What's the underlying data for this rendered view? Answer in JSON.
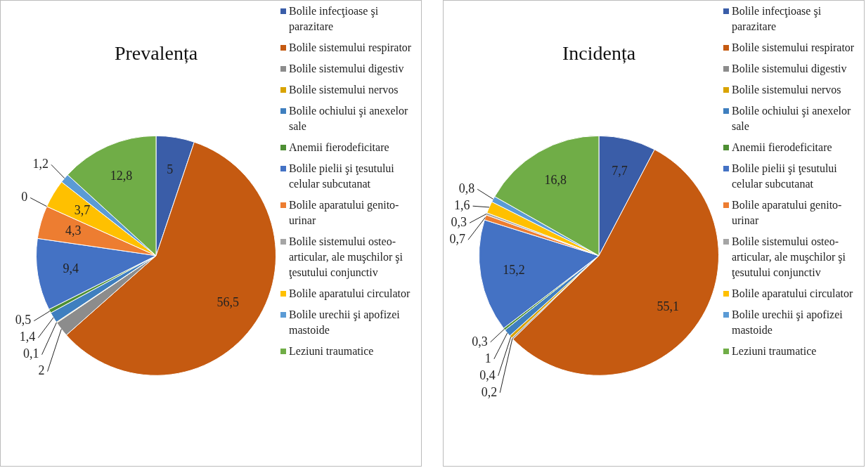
{
  "chart_data": [
    {
      "type": "pie",
      "title": "Prevalența",
      "legend": "right",
      "categories": [
        "Bolile infecţioase şi parazitare",
        "Bolile sistemului respirator",
        "Bolile sistemului digestiv",
        "Bolile sistemului nervos",
        "Bolile ochiului şi anexelor sale",
        "Anemii fierodeficitare",
        "Bolile pielii şi ţesutului celular subcutanat",
        "Bolile aparatului genito-urinar",
        "Bolile sistemului osteo-articular, ale muşchilor şi ţesutului conjunctiv",
        "Bolile aparatului circulator",
        "Bolile urechii şi apofizei mastoide",
        "Leziuni traumatice"
      ],
      "values": [
        5,
        56.5,
        2,
        0.1,
        1.4,
        0.5,
        9.4,
        4.3,
        0,
        3.7,
        1.2,
        12.8
      ],
      "value_labels": [
        "5",
        "56,5",
        "2",
        "0,1",
        "1,4",
        "0,5",
        "9,4",
        "4,3",
        "0",
        "3,7",
        "1,2",
        "12,8"
      ],
      "colors": [
        "#3a5da8",
        "#c55a11",
        "#8c8c8c",
        "#d9a300",
        "#3f7fbf",
        "#4e8f34",
        "#4472c4",
        "#ed7d31",
        "#a5a5a5",
        "#ffc000",
        "#5b9bd5",
        "#70ad47"
      ]
    },
    {
      "type": "pie",
      "title": "Incidența",
      "legend": "right",
      "categories": [
        "Bolile infecţioase şi parazitare",
        "Bolile sistemului respirator",
        "Bolile sistemului digestiv",
        "Bolile sistemului nervos",
        "Bolile ochiului şi anexelor sale",
        "Anemii fierodeficitare",
        "Bolile pielii şi ţesutului celular subcutanat",
        "Bolile aparatului genito-urinar",
        "Bolile sistemului osteo-articular, ale muşchilor şi ţesutului conjunctiv",
        "Bolile aparatului circulator",
        "Bolile urechii şi apofizei mastoide",
        "Leziuni traumatice"
      ],
      "values": [
        7.7,
        55.1,
        0.2,
        0.4,
        1,
        0.3,
        15.2,
        0.7,
        0.3,
        1.6,
        0.8,
        16.8
      ],
      "value_labels": [
        "7,7",
        "55,1",
        "0,2",
        "0,4",
        "1",
        "0,3",
        "15,2",
        "0,7",
        "0,3",
        "1,6",
        "0,8",
        "16,8"
      ],
      "colors": [
        "#3a5da8",
        "#c55a11",
        "#8c8c8c",
        "#d9a300",
        "#3f7fbf",
        "#4e8f34",
        "#4472c4",
        "#ed7d31",
        "#a5a5a5",
        "#ffc000",
        "#5b9bd5",
        "#70ad47"
      ]
    }
  ]
}
